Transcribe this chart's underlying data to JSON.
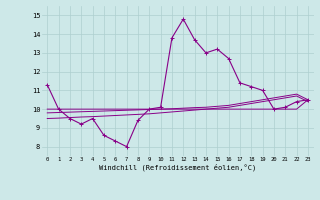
{
  "xlabel": "Windchill (Refroidissement éolien,°C)",
  "bg_color": "#cde8e8",
  "grid_color": "#aecfcf",
  "line_color": "#880088",
  "x_values": [
    0,
    1,
    2,
    3,
    4,
    5,
    6,
    7,
    8,
    9,
    10,
    11,
    12,
    13,
    14,
    15,
    16,
    17,
    18,
    19,
    20,
    21,
    22,
    23
  ],
  "temp_line": [
    11.3,
    10.0,
    9.5,
    9.2,
    9.5,
    8.6,
    8.3,
    8.0,
    9.4,
    10.0,
    10.1,
    13.8,
    14.8,
    13.7,
    13.0,
    13.2,
    12.7,
    11.4,
    11.2,
    11.0,
    10.0,
    10.1,
    10.4,
    10.5
  ],
  "line_flat1": [
    10.0,
    10.0,
    10.0,
    10.0,
    10.0,
    10.0,
    10.0,
    10.0,
    10.0,
    10.0,
    10.0,
    10.0,
    10.0,
    10.0,
    10.0,
    10.0,
    10.0,
    10.0,
    10.0,
    10.0,
    10.0,
    10.0,
    10.0,
    10.5
  ],
  "line_flat2": [
    9.8,
    9.82,
    9.84,
    9.86,
    9.88,
    9.9,
    9.92,
    9.94,
    9.96,
    9.98,
    10.0,
    10.02,
    10.05,
    10.08,
    10.1,
    10.15,
    10.2,
    10.3,
    10.4,
    10.5,
    10.6,
    10.7,
    10.8,
    10.5
  ],
  "line_flat3": [
    9.5,
    9.52,
    9.55,
    9.58,
    9.6,
    9.63,
    9.66,
    9.69,
    9.72,
    9.75,
    9.8,
    9.85,
    9.9,
    9.95,
    10.0,
    10.05,
    10.1,
    10.2,
    10.3,
    10.4,
    10.5,
    10.6,
    10.7,
    10.4
  ],
  "ylim": [
    7.5,
    15.5
  ],
  "yticks": [
    8,
    9,
    10,
    11,
    12,
    13,
    14,
    15
  ],
  "xlim": [
    -0.5,
    23.5
  ]
}
